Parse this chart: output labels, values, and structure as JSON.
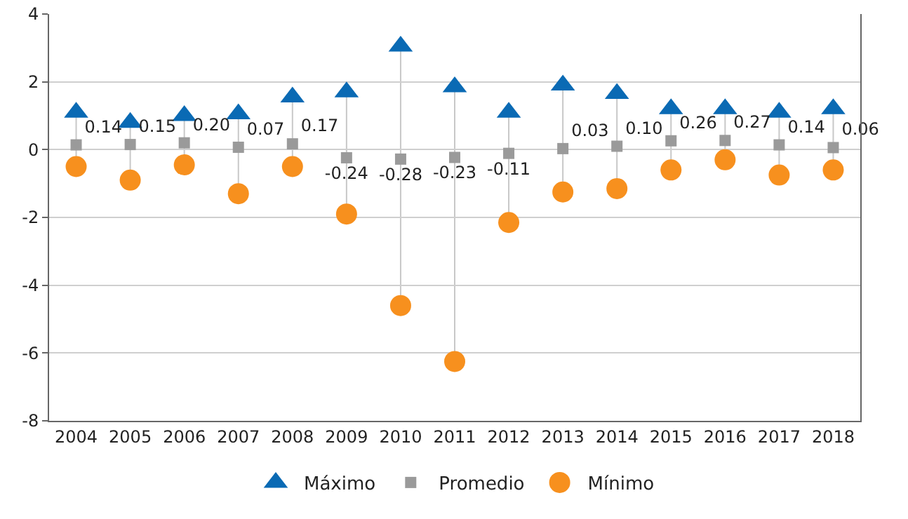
{
  "chart_data": {
    "type": "scatter",
    "categories": [
      "2004",
      "2005",
      "2006",
      "2007",
      "2008",
      "2009",
      "2010",
      "2011",
      "2012",
      "2013",
      "2014",
      "2015",
      "2016",
      "2017",
      "2018"
    ],
    "series": [
      {
        "name": "Máximo",
        "color": "#0a6ab4",
        "marker": "triangle",
        "values": [
          1.1,
          0.8,
          1.0,
          1.05,
          1.55,
          1.7,
          3.05,
          1.85,
          1.1,
          1.9,
          1.65,
          1.2,
          1.2,
          1.1,
          1.2
        ]
      },
      {
        "name": "Promedio",
        "color": "#9a9a9a",
        "marker": "square",
        "values": [
          0.14,
          0.15,
          0.2,
          0.07,
          0.17,
          -0.24,
          -0.28,
          -0.23,
          -0.11,
          0.03,
          0.1,
          0.26,
          0.27,
          0.14,
          0.06
        ],
        "value_labels": [
          "0.14",
          "0.15",
          "0.20",
          "0.07",
          "0.17",
          "-0.24",
          "-0.28",
          "-0.23",
          "-0.11",
          "0.03",
          "0.10",
          "0.26",
          "0.27",
          "0.14",
          "0.06"
        ]
      },
      {
        "name": "Mínimo",
        "color": "#f7901e",
        "marker": "circle",
        "values": [
          -0.5,
          -0.9,
          -0.45,
          -1.3,
          -0.5,
          -1.9,
          -4.6,
          -6.25,
          -2.15,
          -1.25,
          -1.15,
          -0.6,
          -0.3,
          -0.75,
          -0.6
        ]
      }
    ],
    "ylim": [
      -8,
      4
    ],
    "yticks": [
      -8,
      -6,
      -4,
      -2,
      0,
      2,
      4
    ],
    "grid": "y",
    "legend": "bottom"
  }
}
